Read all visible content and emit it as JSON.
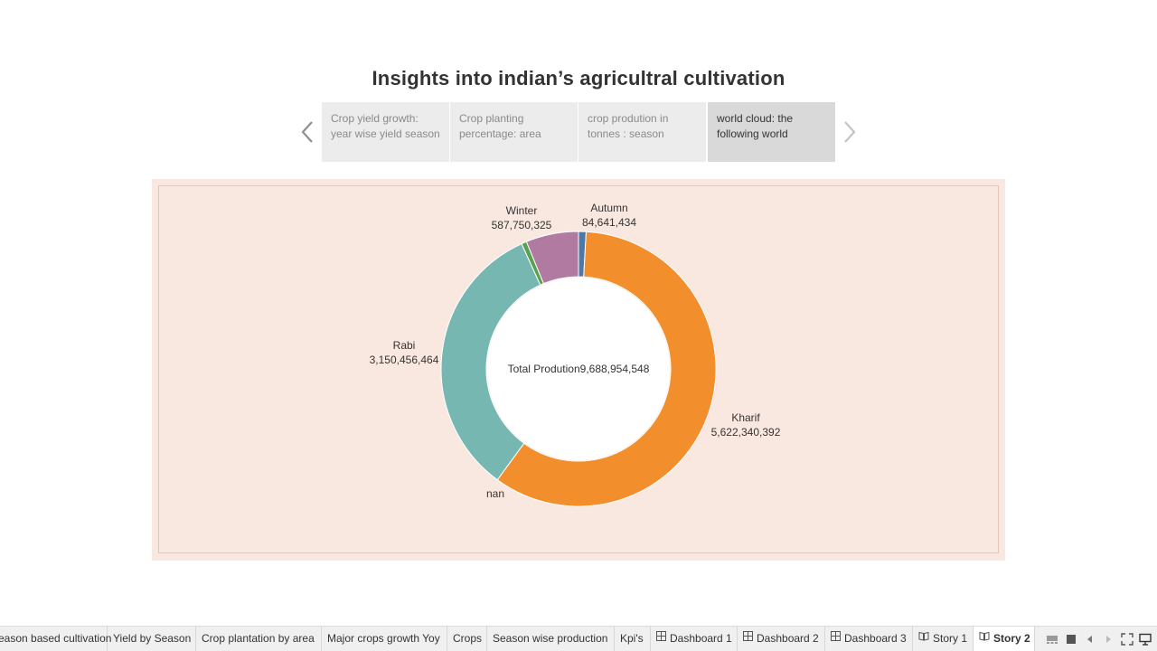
{
  "story": {
    "title": "Insights into indian’s agricultral cultivation",
    "points": [
      {
        "caption": "Crop yield growth: year wise yield season",
        "active": false
      },
      {
        "caption": "Crop planting percentage: area",
        "active": false
      },
      {
        "caption": "crop prodution in tonnes : season",
        "active": false
      },
      {
        "caption": "world cloud: the following world",
        "active": true
      }
    ]
  },
  "chart_data": {
    "type": "pie",
    "donut": true,
    "center_label": "Total Prodution9,688,954,548",
    "slices": [
      {
        "name": "Autumn",
        "value": 84641434,
        "value_label": "84,641,434",
        "color": "#4e79a7"
      },
      {
        "name": "Kharif",
        "value": 5622340392,
        "value_label": "5,622,340,392",
        "color": "#f28e2b"
      },
      {
        "name": "Rabi",
        "value": 3150456464,
        "value_label": "3,150,456,464",
        "color": "#76b7b2"
      },
      {
        "name": "",
        "value": 58000000,
        "value_label": "",
        "color": "#59a14f"
      },
      {
        "name": "Winter",
        "value": 587750325,
        "value_label": "587,750,325",
        "color": "#b07aa1"
      }
    ],
    "extra_labels": [
      "nan"
    ],
    "background": "#f9e8e0"
  },
  "tabs": [
    {
      "label": "Season based cultivation",
      "type": "sheet",
      "active": false
    },
    {
      "label": "Yield by Season",
      "type": "sheet",
      "active": false
    },
    {
      "label": "Crop plantation by area",
      "type": "sheet",
      "active": false
    },
    {
      "label": "Major crops growth Yoy",
      "type": "sheet",
      "active": false
    },
    {
      "label": "Crops",
      "type": "sheet",
      "active": false
    },
    {
      "label": "Season wise production",
      "type": "sheet",
      "active": false
    },
    {
      "label": "Kpi's",
      "type": "sheet",
      "active": false
    },
    {
      "label": "Dashboard 1",
      "type": "dashboard",
      "active": false
    },
    {
      "label": "Dashboard 2",
      "type": "dashboard",
      "active": false
    },
    {
      "label": "Dashboard 3",
      "type": "dashboard",
      "active": false
    },
    {
      "label": "Story 1",
      "type": "story",
      "active": false
    },
    {
      "label": "Story 2",
      "type": "story",
      "active": true
    }
  ],
  "controls": [
    "filmstrip-icon",
    "grid-icon",
    "prev-sheet-icon",
    "next-sheet-icon",
    "fullscreen-icon",
    "present-icon"
  ]
}
